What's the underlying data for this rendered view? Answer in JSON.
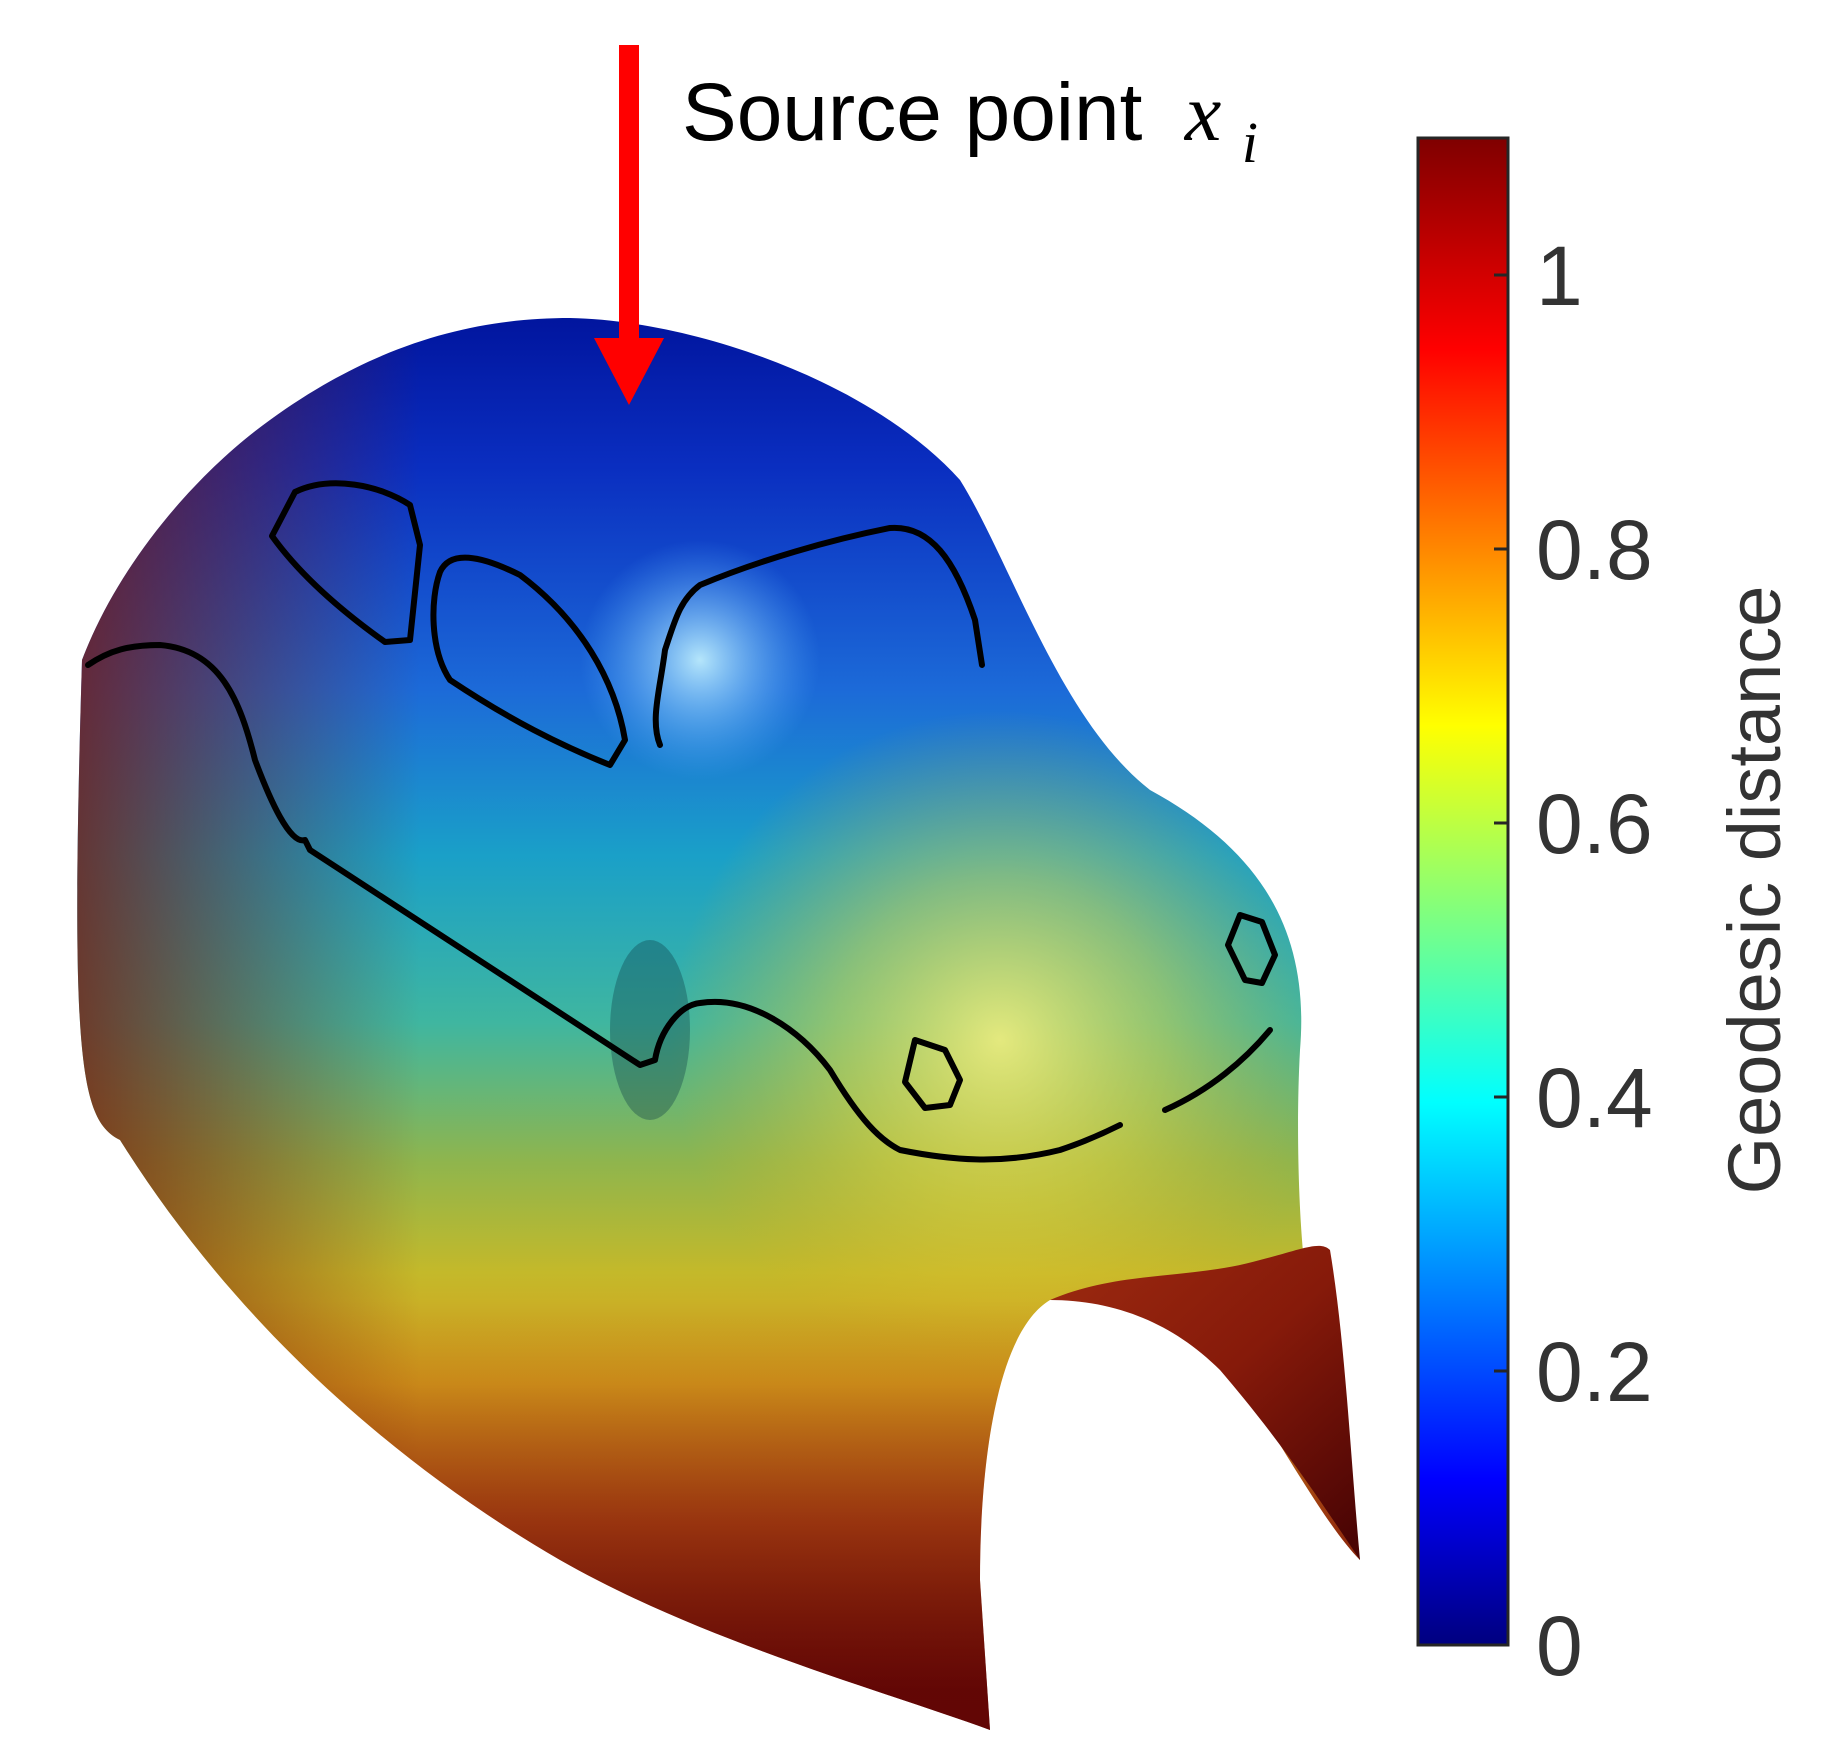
{
  "annotation": {
    "label_prefix": "Source point",
    "label_var": "x",
    "label_sub": "i",
    "arrow_color": "#ff0000"
  },
  "colorbar": {
    "label": "Geodesic distance",
    "colormap": "jet",
    "range": [
      0,
      1.1
    ],
    "ticks": [
      {
        "value": 0,
        "label": "0"
      },
      {
        "value": 0.2,
        "label": "0.2"
      },
      {
        "value": 0.4,
        "label": "0.4"
      },
      {
        "value": 0.6,
        "label": "0.6"
      },
      {
        "value": 0.8,
        "label": "0.8"
      },
      {
        "value": 1,
        "label": "1"
      }
    ]
  },
  "surface": {
    "colormap": "jet",
    "feature_line_color": "#000000"
  }
}
